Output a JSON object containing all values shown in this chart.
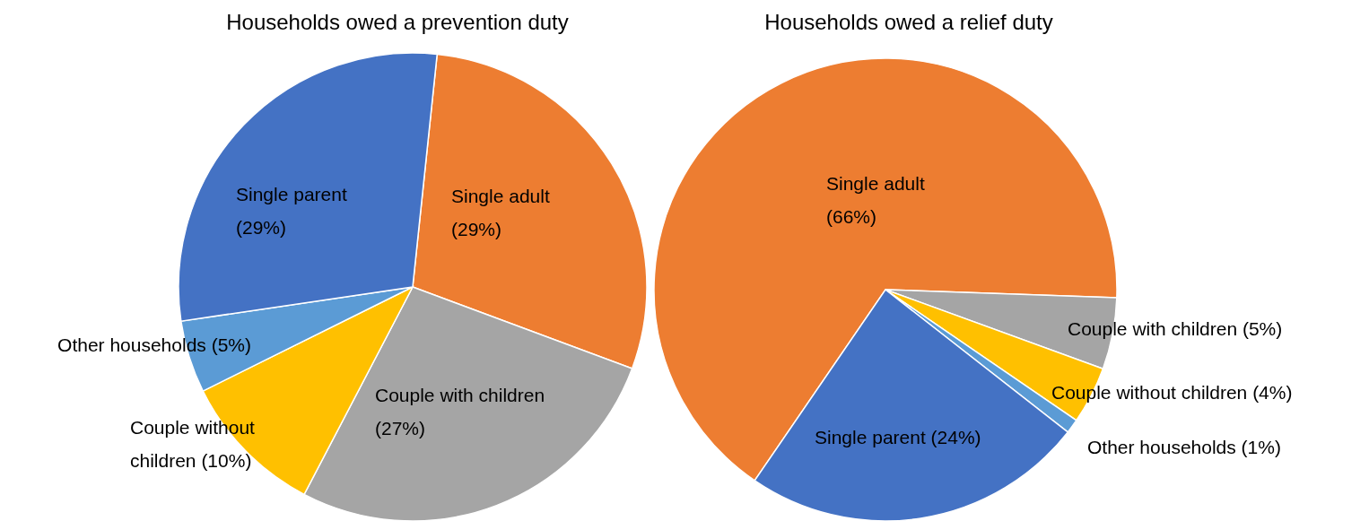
{
  "chart_data": [
    {
      "type": "pie",
      "title": "Households owed a prevention duty",
      "categories": [
        "Single adult",
        "Couple with children",
        "Couple without children",
        "Other households",
        "Single parent"
      ],
      "values": [
        29,
        27,
        10,
        5,
        29
      ],
      "colors": [
        "#ed7d31",
        "#a5a5a5",
        "#ffc000",
        "#5b9bd5",
        "#4472c4"
      ],
      "value_labels": [
        "(29%)",
        "(27%)",
        "(10%)",
        "(5%)",
        "(29%)"
      ]
    },
    {
      "type": "pie",
      "title": "Households owed a relief duty",
      "categories": [
        "Single adult",
        "Couple with children",
        "Couple without children",
        "Other households",
        "Single parent"
      ],
      "values": [
        66,
        5,
        4,
        1,
        24
      ],
      "colors": [
        "#ed7d31",
        "#a5a5a5",
        "#ffc000",
        "#5b9bd5",
        "#4472c4"
      ],
      "value_labels": [
        "(66%)",
        "(5%)",
        "(4%)",
        "(1%)",
        "(24%)"
      ]
    }
  ]
}
